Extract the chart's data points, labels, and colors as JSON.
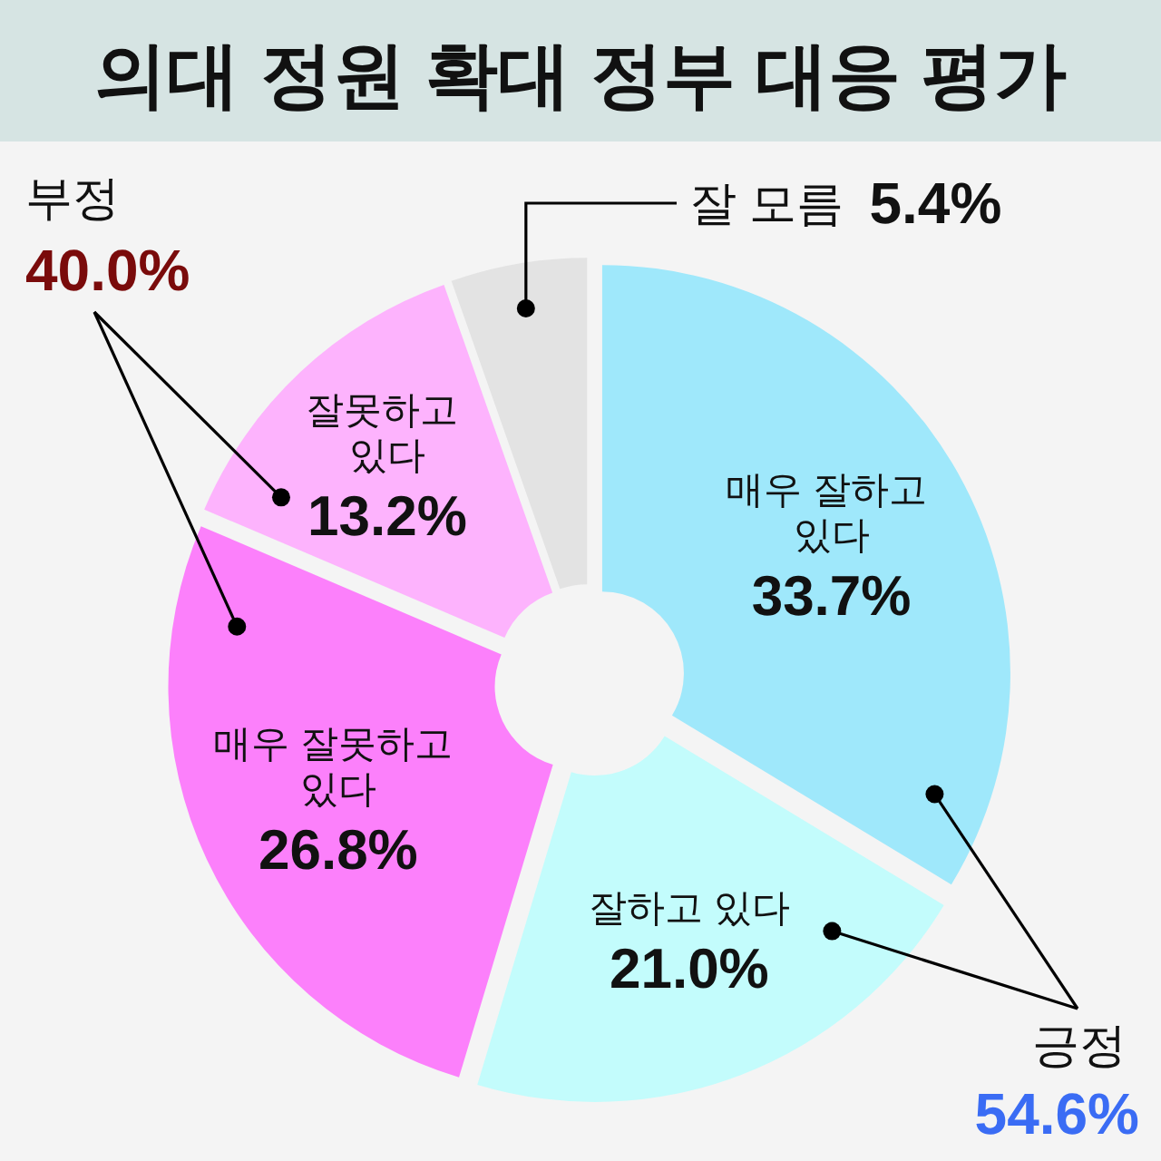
{
  "chart_data": {
    "type": "donut",
    "title": "의대 정원 확대 정부 대응 평가",
    "categories": [
      "매우 잘하고 있다",
      "잘하고 있다",
      "매우 잘못하고 있다",
      "잘못하고 있다",
      "잘 모름"
    ],
    "values": [
      33.7,
      21.0,
      26.8,
      13.2,
      5.4
    ],
    "value_labels": [
      "33.7%",
      "21.0%",
      "26.8%",
      "13.2%",
      "5.4%"
    ],
    "colors": [
      "#9fe8fb",
      "#c3fcfc",
      "#fc80fb",
      "#fdb3fd",
      "#e3e3e3"
    ],
    "annotations": [
      "부정 40.0%",
      "긍정 54.6%"
    ]
  }
}
